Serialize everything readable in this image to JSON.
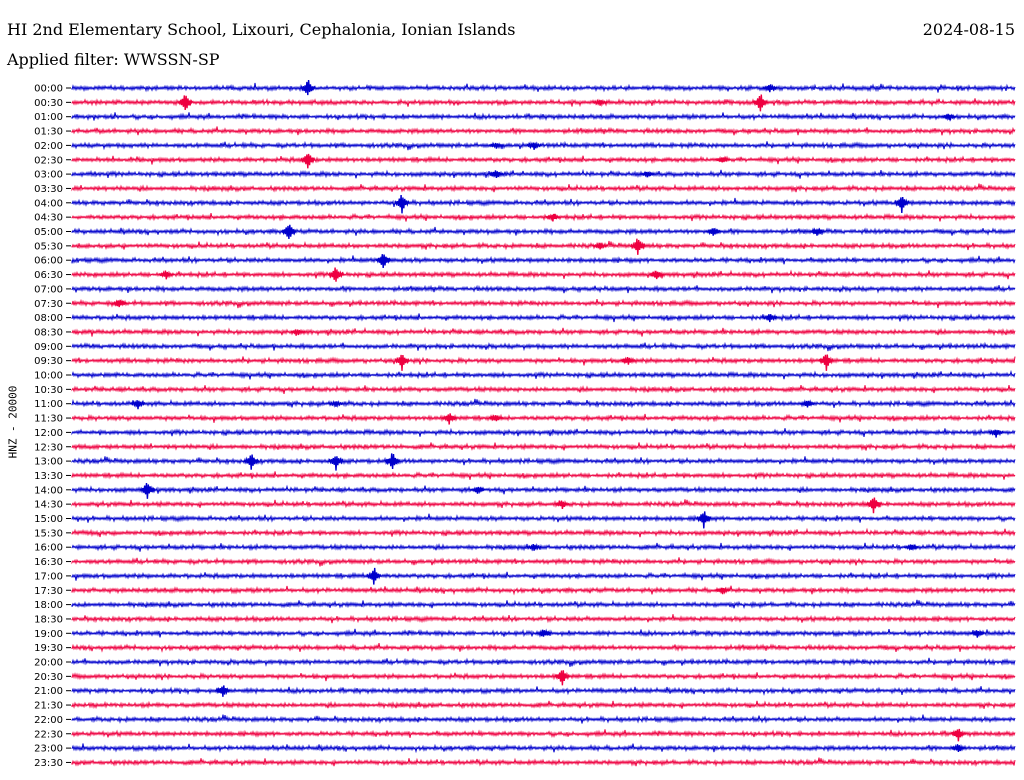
{
  "header": {
    "station_title": "HI 2nd Elementary School, Lixouri, Cephalonia, Ionian Islands",
    "date": "2024-08-15",
    "filter_text": "Applied filter: WWSSN-SP"
  },
  "chart_data": {
    "type": "line",
    "title": "HI 2nd Elementary School, Lixouri, Cephalonia, Ionian Islands",
    "ylabel": "HNZ - 20000",
    "colors": [
      "#0000cc",
      "#ee0040"
    ],
    "traces": [
      {
        "label": "00:00",
        "events": [
          [
            0.25,
            1.0
          ],
          [
            0.74,
            0.45
          ]
        ]
      },
      {
        "label": "00:30",
        "events": [
          [
            0.12,
            1.0
          ],
          [
            0.73,
            1.0
          ],
          [
            0.56,
            0.35
          ]
        ]
      },
      {
        "label": "01:00",
        "events": [
          [
            0.93,
            0.35
          ]
        ]
      },
      {
        "label": "01:30",
        "events": []
      },
      {
        "label": "02:00",
        "events": [
          [
            0.49,
            0.5
          ],
          [
            0.45,
            0.3
          ]
        ]
      },
      {
        "label": "02:30",
        "events": [
          [
            0.25,
            1.0
          ],
          [
            0.69,
            0.35
          ]
        ]
      },
      {
        "label": "03:00",
        "events": [
          [
            0.45,
            0.5
          ],
          [
            0.61,
            0.3
          ]
        ]
      },
      {
        "label": "03:30",
        "events": []
      },
      {
        "label": "04:00",
        "events": [
          [
            0.35,
            1.0
          ],
          [
            0.88,
            1.0
          ]
        ]
      },
      {
        "label": "04:30",
        "events": [
          [
            0.51,
            0.4
          ]
        ]
      },
      {
        "label": "05:00",
        "events": [
          [
            0.23,
            1.0
          ],
          [
            0.68,
            0.5
          ],
          [
            0.79,
            0.4
          ]
        ]
      },
      {
        "label": "05:30",
        "events": [
          [
            0.6,
            1.0
          ],
          [
            0.56,
            0.4
          ]
        ]
      },
      {
        "label": "06:00",
        "events": [
          [
            0.33,
            1.0
          ]
        ]
      },
      {
        "label": "06:30",
        "events": [
          [
            0.28,
            1.0
          ],
          [
            0.1,
            0.5
          ],
          [
            0.62,
            0.5
          ]
        ]
      },
      {
        "label": "07:00",
        "events": []
      },
      {
        "label": "07:30",
        "events": [
          [
            0.05,
            0.5
          ]
        ]
      },
      {
        "label": "08:00",
        "events": [
          [
            0.74,
            0.5
          ]
        ]
      },
      {
        "label": "08:30",
        "events": [
          [
            0.24,
            0.35
          ]
        ]
      },
      {
        "label": "09:00",
        "events": []
      },
      {
        "label": "09:30",
        "events": [
          [
            0.35,
            1.0
          ],
          [
            0.8,
            1.0
          ],
          [
            0.59,
            0.5
          ]
        ]
      },
      {
        "label": "10:00",
        "events": []
      },
      {
        "label": "10:30",
        "events": []
      },
      {
        "label": "11:00",
        "events": [
          [
            0.07,
            0.5
          ],
          [
            0.28,
            0.4
          ],
          [
            0.78,
            0.5
          ]
        ]
      },
      {
        "label": "11:30",
        "events": [
          [
            0.4,
            0.6
          ],
          [
            0.45,
            0.4
          ]
        ]
      },
      {
        "label": "12:00",
        "events": [
          [
            0.98,
            0.5
          ]
        ]
      },
      {
        "label": "12:30",
        "events": []
      },
      {
        "label": "13:00",
        "events": [
          [
            0.19,
            1.0
          ],
          [
            0.28,
            0.9
          ],
          [
            0.34,
            1.0
          ]
        ]
      },
      {
        "label": "13:30",
        "events": []
      },
      {
        "label": "14:00",
        "events": [
          [
            0.08,
            1.0
          ],
          [
            0.43,
            0.4
          ]
        ]
      },
      {
        "label": "14:30",
        "events": [
          [
            0.85,
            1.0
          ],
          [
            0.52,
            0.45
          ]
        ]
      },
      {
        "label": "15:00",
        "events": [
          [
            0.67,
            1.0
          ]
        ]
      },
      {
        "label": "15:30",
        "events": []
      },
      {
        "label": "16:00",
        "events": [
          [
            0.49,
            0.4
          ],
          [
            0.89,
            0.35
          ]
        ]
      },
      {
        "label": "16:30",
        "events": []
      },
      {
        "label": "17:00",
        "events": [
          [
            0.32,
            1.0
          ]
        ]
      },
      {
        "label": "17:30",
        "events": [
          [
            0.69,
            0.4
          ]
        ]
      },
      {
        "label": "18:00",
        "events": []
      },
      {
        "label": "18:30",
        "events": []
      },
      {
        "label": "19:00",
        "events": [
          [
            0.5,
            0.5
          ],
          [
            0.96,
            0.4
          ]
        ]
      },
      {
        "label": "19:30",
        "events": []
      },
      {
        "label": "20:00",
        "events": []
      },
      {
        "label": "20:30",
        "events": [
          [
            0.52,
            0.9
          ]
        ]
      },
      {
        "label": "21:00",
        "events": [
          [
            0.16,
            0.7
          ]
        ]
      },
      {
        "label": "21:30",
        "events": []
      },
      {
        "label": "22:00",
        "events": []
      },
      {
        "label": "22:30",
        "events": [
          [
            0.94,
            0.7
          ]
        ]
      },
      {
        "label": "23:00",
        "events": [
          [
            0.94,
            0.5
          ]
        ]
      },
      {
        "label": "23:30",
        "events": []
      }
    ]
  }
}
